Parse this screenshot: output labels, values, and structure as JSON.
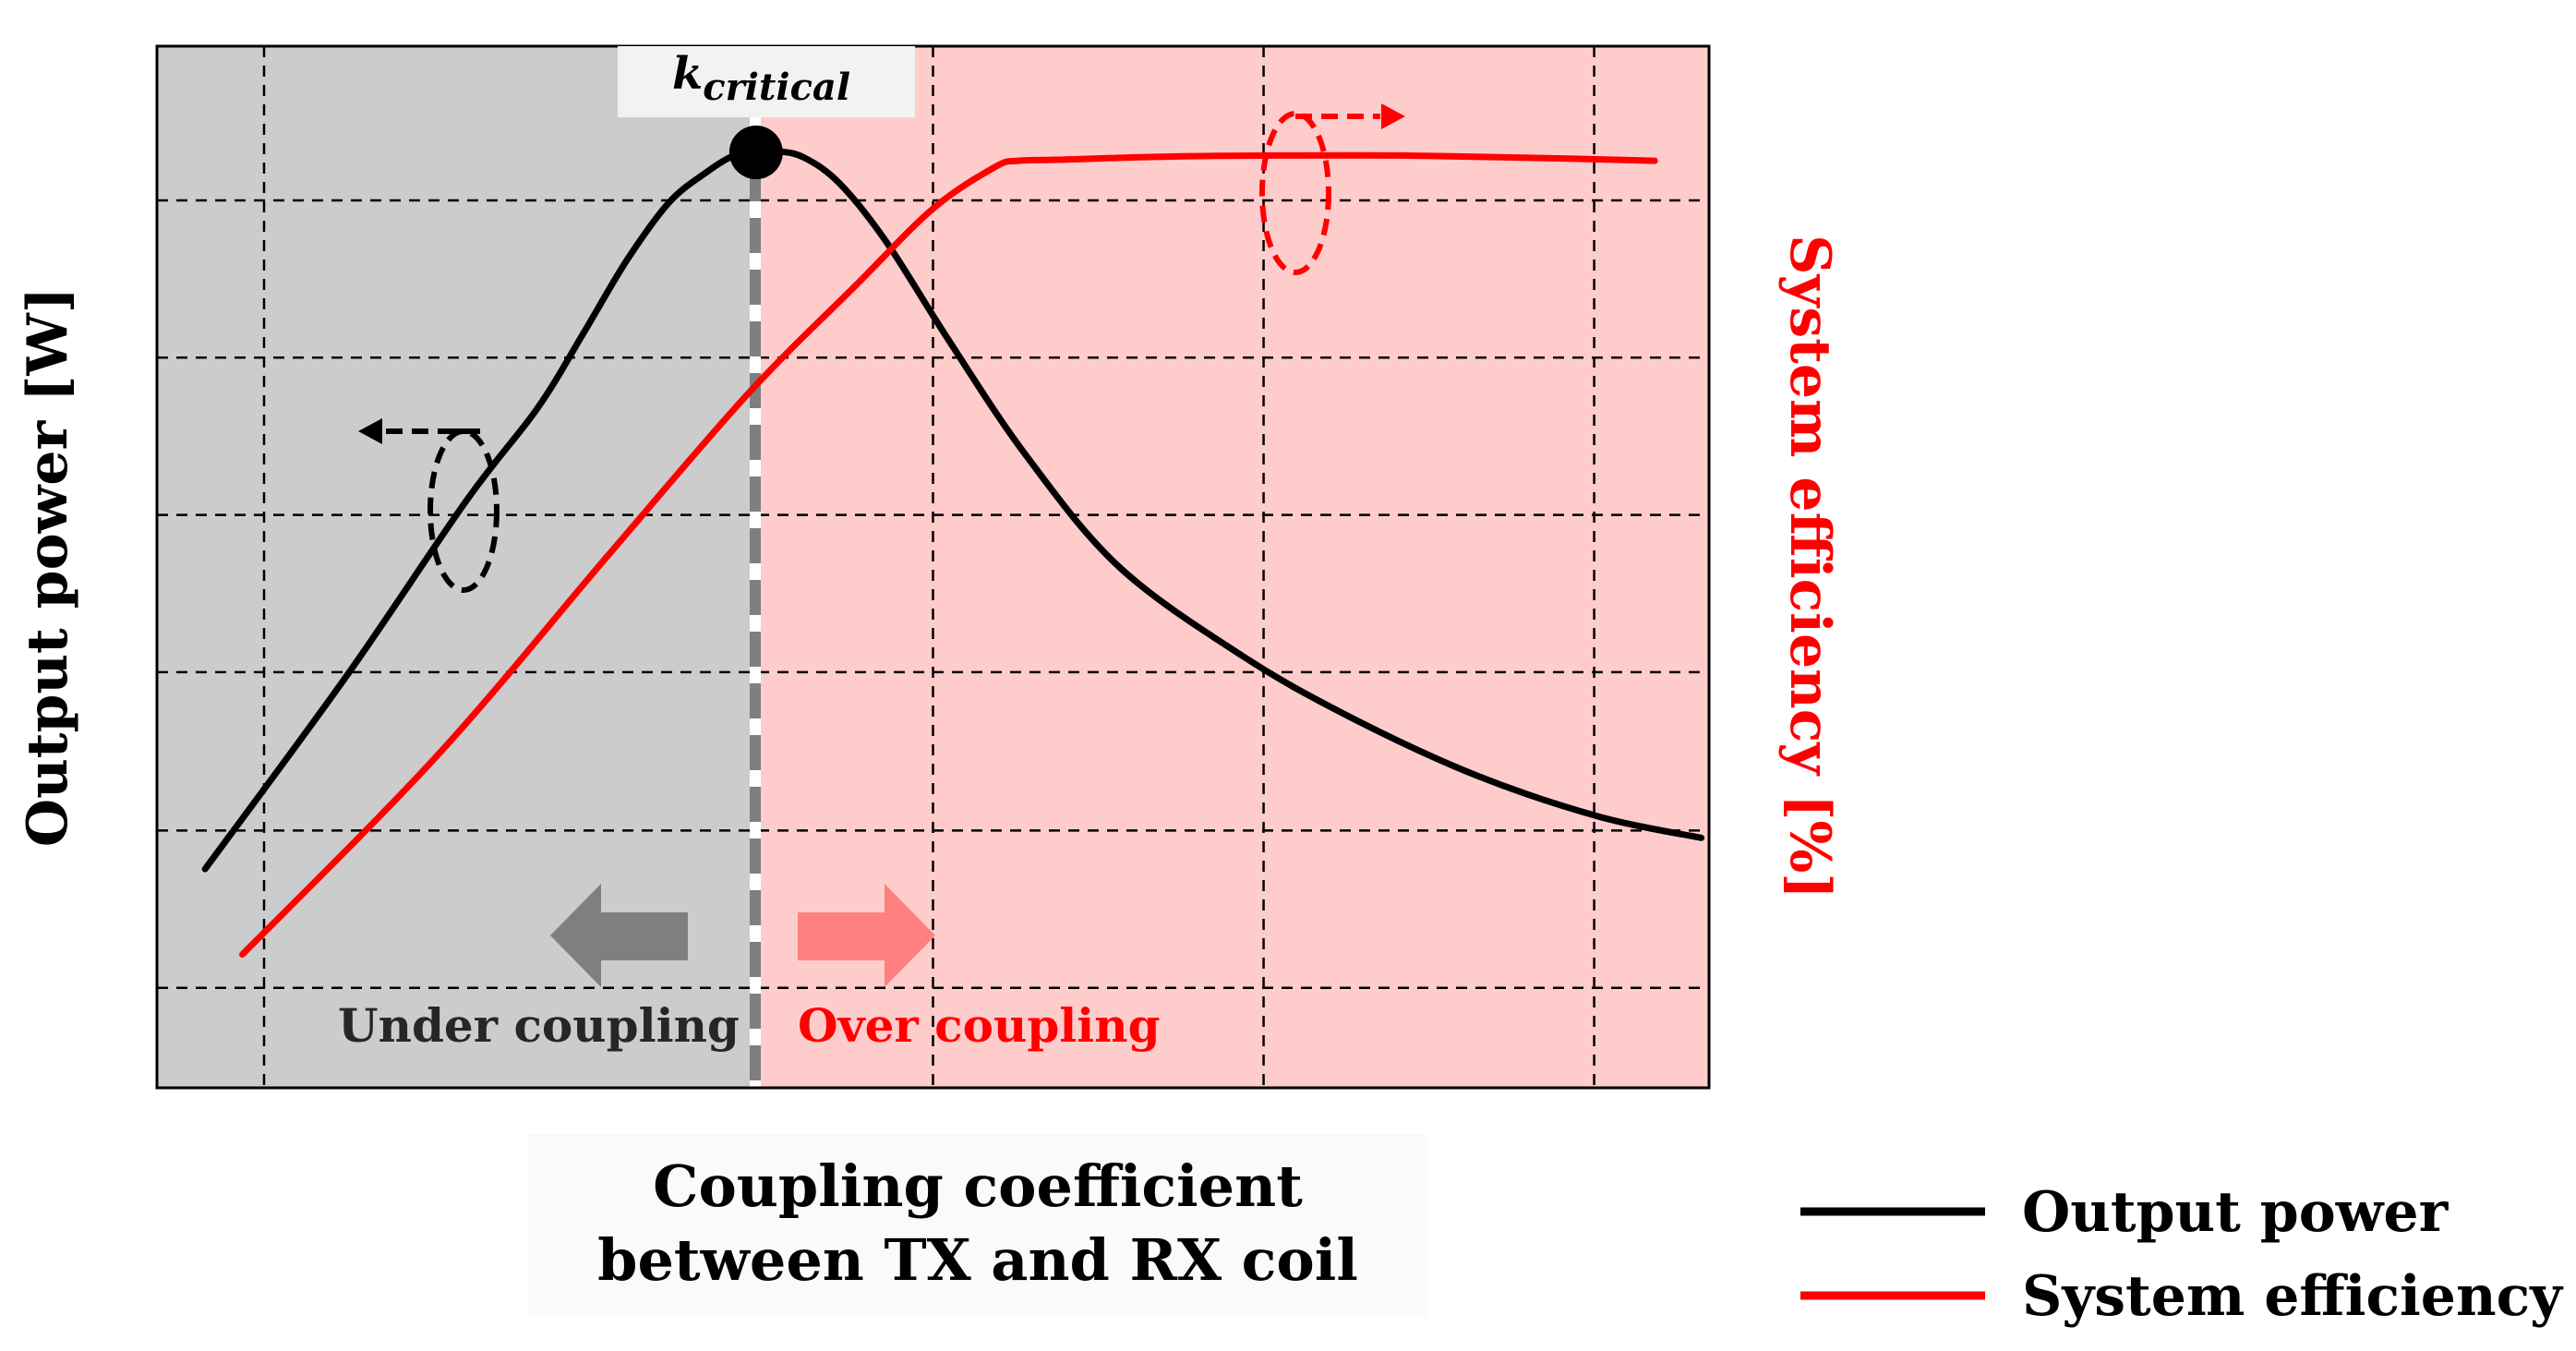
{
  "chart_data": {
    "type": "line",
    "title": "",
    "xlabel_lines": [
      "Coupling coefficient",
      "between TX and RX coil"
    ],
    "ylabel": "Output power [W]",
    "y2label": "System efficiency [%]",
    "xlim": [
      0,
      1
    ],
    "ylim": [
      0,
      1
    ],
    "y2lim": [
      0,
      1
    ],
    "grid": true,
    "x_gridlines": [
      0.069,
      0.5,
      0.713,
      0.926
    ],
    "y_gridlines": [
      0.852,
      0.701,
      0.55,
      0.399,
      0.247,
      0.096
    ],
    "critical_point": {
      "label_main": "k",
      "label_sub": "critical",
      "x": 0.386,
      "y": 0.898
    },
    "regions": [
      {
        "name": "Under coupling",
        "x_range": [
          0,
          0.386
        ],
        "color": "#cccccc"
      },
      {
        "name": "Over coupling",
        "x_range": [
          0.386,
          1
        ],
        "color": "#ffcccc"
      }
    ],
    "region_labels": {
      "under": "Under coupling",
      "over": "Over coupling"
    },
    "series": [
      {
        "name": "Output power",
        "axis": "left",
        "color": "#000000",
        "x": [
          0.031,
          0.122,
          0.2,
          0.245,
          0.275,
          0.303,
          0.33,
          0.355,
          0.372,
          0.386,
          0.4,
          0.417,
          0.44,
          0.47,
          0.51,
          0.56,
          0.62,
          0.7,
          0.77,
          0.85,
          0.93,
          0.995
        ],
        "values": [
          0.21,
          0.395,
          0.565,
          0.652,
          0.725,
          0.795,
          0.85,
          0.88,
          0.895,
          0.898,
          0.899,
          0.893,
          0.868,
          0.812,
          0.718,
          0.607,
          0.5,
          0.414,
          0.355,
          0.3,
          0.26,
          0.24
        ]
      },
      {
        "name": "System efficiency",
        "axis": "right",
        "color": "#ff0000",
        "x": [
          0.055,
          0.18,
          0.29,
          0.38,
          0.45,
          0.5,
          0.54,
          0.555,
          0.58,
          0.65,
          0.72,
          0.8,
          0.88,
          0.965
        ],
        "values": [
          0.128,
          0.318,
          0.51,
          0.665,
          0.77,
          0.844,
          0.884,
          0.89,
          0.891,
          0.894,
          0.895,
          0.895,
          0.893,
          0.89
        ]
      }
    ],
    "legend": {
      "position": "bottom-right",
      "entries": [
        {
          "label": "Output power",
          "color": "#000000"
        },
        {
          "label": "System efficiency",
          "color": "#ff0000"
        }
      ]
    }
  }
}
